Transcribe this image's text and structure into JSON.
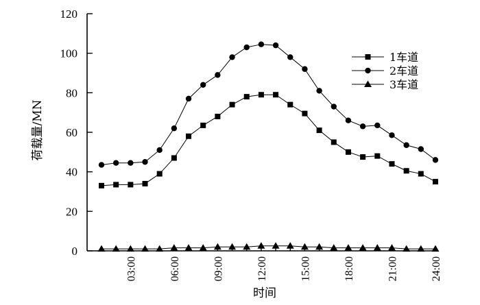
{
  "chart_data": {
    "type": "line",
    "xlabel": "时间",
    "ylabel": "荷载量/MN",
    "ylim": [
      0,
      120
    ],
    "yticks": [
      0,
      20,
      40,
      60,
      80,
      100,
      120
    ],
    "xlim": [
      0,
      24
    ],
    "xtick_labels": [
      "03:00",
      "06:00",
      "09:00",
      "12:00",
      "15:00",
      "18:00",
      "21:00",
      "24:00"
    ],
    "x": [
      1,
      2,
      3,
      4,
      5,
      6,
      7,
      8,
      9,
      10,
      11,
      12,
      13,
      14,
      15,
      16,
      17,
      18,
      19,
      20,
      21,
      22,
      23,
      24
    ],
    "legend_position": "right",
    "series": [
      {
        "name": "1车道",
        "marker": "square",
        "values": [
          33,
          33.5,
          33.5,
          34,
          39,
          47,
          58,
          63.5,
          68,
          74,
          78,
          79,
          79,
          74,
          69.5,
          61,
          55,
          50,
          47.5,
          48,
          44,
          40.5,
          39,
          35
        ]
      },
      {
        "name": "2车道",
        "marker": "circle",
        "values": [
          43.5,
          44.5,
          44.5,
          45,
          51,
          62,
          77,
          84,
          89,
          98,
          103,
          104.5,
          104,
          98,
          92,
          81,
          73,
          66,
          63,
          63.5,
          58.5,
          53.5,
          51.5,
          46
        ]
      },
      {
        "name": "3车道",
        "marker": "triangle",
        "values": [
          1,
          1,
          1,
          1,
          1,
          1.5,
          1.5,
          1.5,
          2,
          2,
          2,
          2.5,
          2.5,
          2.5,
          2,
          2,
          1.5,
          1.5,
          1.5,
          1.5,
          1.5,
          1,
          1,
          1
        ]
      }
    ]
  }
}
